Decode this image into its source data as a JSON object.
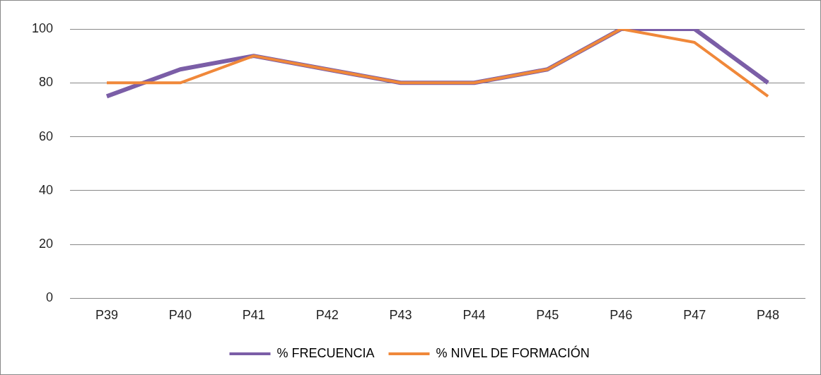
{
  "chart_data": {
    "type": "line",
    "categories": [
      "P39",
      "P40",
      "P41",
      "P42",
      "P43",
      "P44",
      "P45",
      "P46",
      "P47",
      "P48"
    ],
    "series": [
      {
        "name": "% FRECUENCIA",
        "color": "#7b5ea7",
        "values": [
          75,
          85,
          90,
          85,
          80,
          80,
          85,
          100,
          100,
          80
        ]
      },
      {
        "name": "% NIVEL DE FORMACIÓN",
        "color": "#f0883a",
        "values": [
          80,
          80,
          90,
          85,
          80,
          80,
          85,
          100,
          95,
          75
        ]
      }
    ],
    "ylim": [
      0,
      100
    ],
    "yticks": [
      0,
      20,
      40,
      60,
      80,
      100
    ],
    "grid": "y",
    "legend": "bottom",
    "marker": "none",
    "line_style": "solid"
  }
}
